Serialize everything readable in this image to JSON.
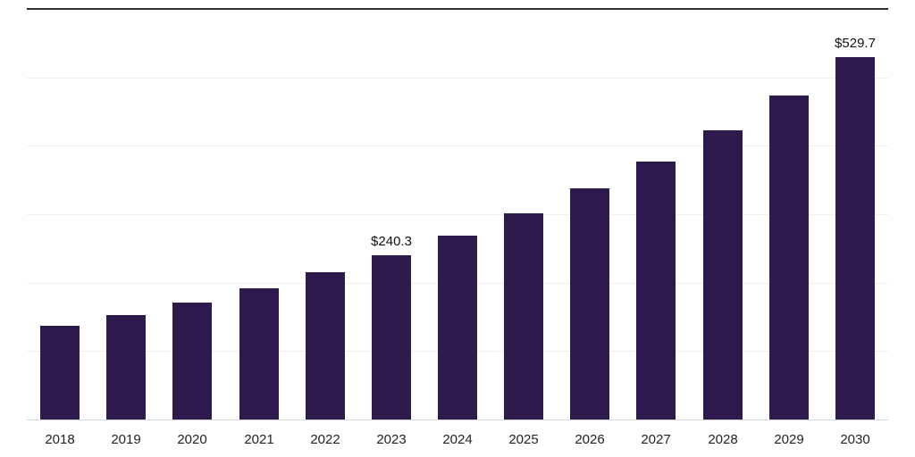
{
  "chart_data": {
    "type": "bar",
    "title": "",
    "xlabel": "",
    "ylabel": "",
    "categories": [
      "2018",
      "2019",
      "2020",
      "2021",
      "2022",
      "2023",
      "2024",
      "2025",
      "2026",
      "2027",
      "2028",
      "2029",
      "2030"
    ],
    "values": [
      136.7,
      153.0,
      171.3,
      191.8,
      214.7,
      240.3,
      269.0,
      301.2,
      337.2,
      377.4,
      422.5,
      473.1,
      529.7
    ],
    "data_labels": [
      null,
      null,
      null,
      null,
      null,
      "$240.3",
      null,
      null,
      null,
      null,
      null,
      null,
      "$529.7"
    ],
    "ylim": [
      0,
      600
    ],
    "gridline_values": [
      100,
      200,
      300,
      400,
      500
    ],
    "top_line_value": 600,
    "grid": true,
    "legend": "none",
    "colors": {
      "bar": "#2e1a4d",
      "grid": "#efefef",
      "axis_line": "#d8d8d8",
      "top_line": "#303030",
      "value_label": "#111111",
      "tick_label": "#222222",
      "background": "#ffffff"
    }
  }
}
